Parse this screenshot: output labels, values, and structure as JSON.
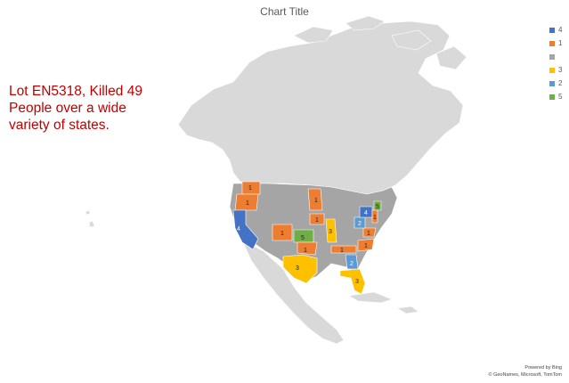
{
  "title": "Chart Title",
  "annotation": {
    "lines": [
      "Lot EN5318, Killed 49",
      "People over a wide",
      "variety of states."
    ]
  },
  "legend": [
    {
      "label": "4",
      "color": "#4472c4"
    },
    {
      "label": "1",
      "color": "#ed7d31"
    },
    {
      "label": "",
      "color": "#a5a5a5"
    },
    {
      "label": "3",
      "color": "#ffc000"
    },
    {
      "label": "2",
      "color": "#5b9bd5"
    },
    {
      "label": "5",
      "color": "#70ad47"
    }
  ],
  "regions": [
    {
      "name": "Washington",
      "value": 1
    },
    {
      "name": "Oregon",
      "value": 1
    },
    {
      "name": "California",
      "value": 4
    },
    {
      "name": "Colorado",
      "value": 1
    },
    {
      "name": "Kansas",
      "value": 5
    },
    {
      "name": "Oklahoma",
      "value": 1
    },
    {
      "name": "Texas",
      "value": 3
    },
    {
      "name": "Minnesota",
      "value": 1
    },
    {
      "name": "Iowa",
      "value": 1
    },
    {
      "name": "Illinois",
      "value": 3
    },
    {
      "name": "Georgia",
      "value": 2
    },
    {
      "name": "Florida",
      "value": 3
    },
    {
      "name": "Tennessee",
      "value": 1
    },
    {
      "name": "North Carolina",
      "value": 1
    },
    {
      "name": "Virginia",
      "value": 1
    },
    {
      "name": "West Virginia",
      "value": 2
    },
    {
      "name": "Pennsylvania",
      "value": 4
    },
    {
      "name": "New Jersey",
      "value": 1
    },
    {
      "name": "Vermont",
      "value": 5
    }
  ],
  "credits": {
    "line1": "Powered by Bing",
    "line2": "© GeoNames, Microsoft, TomTom"
  }
}
